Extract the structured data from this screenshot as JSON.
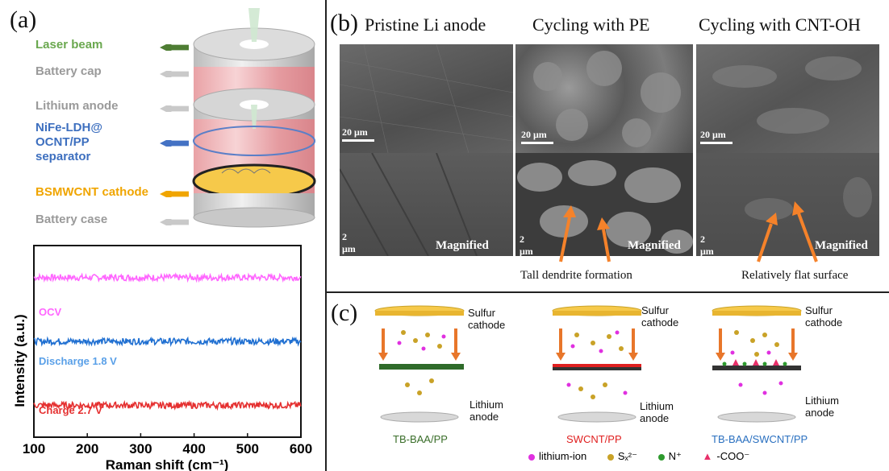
{
  "panel_a": {
    "letter": "(a)",
    "schematic_labels": [
      {
        "text": "Laser beam",
        "color": "#6aa84f",
        "arrow": "#4e7d33"
      },
      {
        "text": "Battery cap",
        "color": "#9a9a9a",
        "arrow": "#c9c9c9"
      },
      {
        "text": "Lithium anode",
        "color": "#9a9a9a",
        "arrow": "#c9c9c9"
      },
      {
        "text": "NiFe-LDH@",
        "color": "#3d6fbf",
        "arrow": "#4472c4"
      },
      {
        "text": "OCNT/PP",
        "color": "#3d6fbf"
      },
      {
        "text": "separator",
        "color": "#3d6fbf"
      },
      {
        "text": "BSMWCNT cathode",
        "color": "#f0a500",
        "arrow": "#f0a500"
      },
      {
        "text": "Battery case",
        "color": "#9a9a9a",
        "arrow": "#c9c9c9"
      }
    ]
  },
  "chart_data": {
    "type": "line",
    "xlabel": "Raman shift (cm⁻¹)",
    "ylabel": "Intensity (a.u.)",
    "xlim": [
      100,
      600
    ],
    "x_ticks": [
      "100",
      "200",
      "300",
      "400",
      "500",
      "600"
    ],
    "series": [
      {
        "name": "OCV",
        "color": "#ff66ff",
        "offset": 3.0
      },
      {
        "name": "Discharge 1.8 V",
        "color": "#1f6fd1",
        "offset": 1.8
      },
      {
        "name": "Charge 2.7 V",
        "color": "#e53030",
        "offset": 0.6
      }
    ]
  },
  "panel_b": {
    "letter": "(b)",
    "columns": [
      {
        "title": "Pristine Li anode",
        "scale_top": "20 μm",
        "scale_bottom": "2 μm",
        "magnified": "Magnified"
      },
      {
        "title": "Cycling with PE",
        "scale_top": "20 μm",
        "scale_bottom": "2 μm",
        "magnified": "Magnified"
      },
      {
        "title": "Cycling with CNT-OH",
        "scale_top": "20 μm",
        "scale_bottom": "2 μm",
        "magnified": "Magnified"
      }
    ],
    "captions": [
      "Tall dendrite formation",
      "Relatively flat surface"
    ],
    "arrow_color": "#f5822a"
  },
  "panel_c": {
    "letter": "(c)",
    "cells": [
      {
        "top": "Sulfur\ncathode",
        "bottom": "Lithium\nanode",
        "name": "TB-BAA/PP",
        "name_color": "#3a6e2a",
        "sep_color": "#2f6b2a"
      },
      {
        "top": "Sulfur\ncathode",
        "bottom": "Lithium\nanode",
        "name": "SWCNT/PP",
        "name_color": "#e02020",
        "sep_color": "#e02020"
      },
      {
        "top": "Sulfur\ncathode",
        "bottom": "Lithium\nanode",
        "name": "TB-BAA/SWCNT/PP",
        "name_color": "#2a70c0",
        "sep_color": "#333333"
      }
    ],
    "legend": [
      {
        "label": "lithium-ion",
        "color": "#e030e0",
        "shape": "circle"
      },
      {
        "label": "Sₓ²⁻",
        "color": "#c9a227",
        "shape": "circle"
      },
      {
        "label": "N⁺",
        "color": "#2e9a2e",
        "shape": "circle"
      },
      {
        "label": "-COO⁻",
        "color": "#e8306a",
        "shape": "triangle"
      }
    ]
  }
}
